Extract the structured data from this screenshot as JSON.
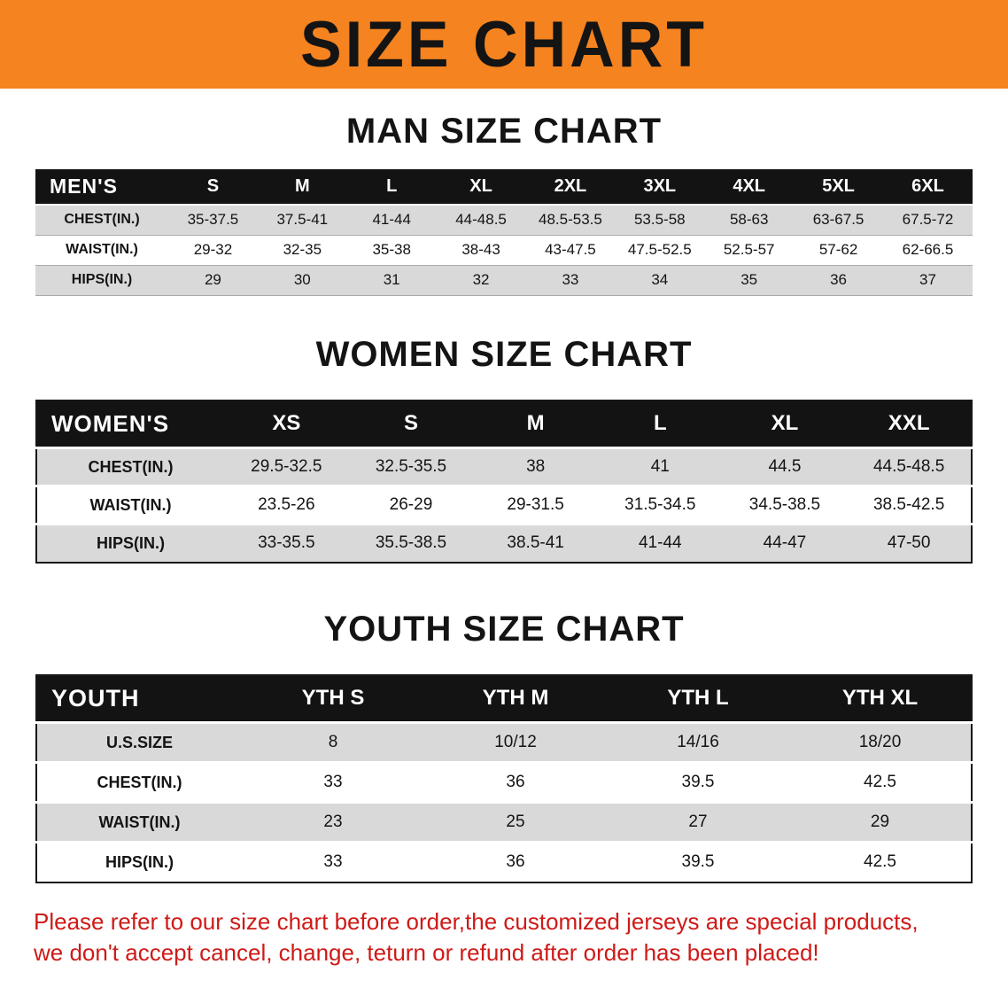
{
  "banner": {
    "title": "SIZE CHART",
    "background_color": "#F5831F",
    "text_color": "#141414"
  },
  "men": {
    "heading": "MAN SIZE CHART",
    "table": {
      "header": [
        "MEN'S",
        "S",
        "M",
        "L",
        "XL",
        "2XL",
        "3XL",
        "4XL",
        "5XL",
        "6XL"
      ],
      "rows": [
        [
          "CHEST(IN.)",
          "35-37.5",
          "37.5-41",
          "41-44",
          "44-48.5",
          "48.5-53.5",
          "53.5-58",
          "58-63",
          "63-67.5",
          "67.5-72"
        ],
        [
          "WAIST(IN.)",
          "29-32",
          "32-35",
          "35-38",
          "38-43",
          "43-47.5",
          "47.5-52.5",
          "52.5-57",
          "57-62",
          "62-66.5"
        ],
        [
          "HIPS(IN.)",
          "29",
          "30",
          "31",
          "32",
          "33",
          "34",
          "35",
          "36",
          "37"
        ]
      ]
    }
  },
  "women": {
    "heading": "WOMEN SIZE CHART",
    "table": {
      "header": [
        "WOMEN'S",
        "XS",
        "S",
        "M",
        "L",
        "XL",
        "XXL"
      ],
      "rows": [
        [
          "CHEST(IN.)",
          "29.5-32.5",
          "32.5-35.5",
          "38",
          "41",
          "44.5",
          "44.5-48.5"
        ],
        [
          "WAIST(IN.)",
          "23.5-26",
          "26-29",
          "29-31.5",
          "31.5-34.5",
          "34.5-38.5",
          "38.5-42.5"
        ],
        [
          "HIPS(IN.)",
          "33-35.5",
          "35.5-38.5",
          "38.5-41",
          "41-44",
          "44-47",
          "47-50"
        ]
      ]
    }
  },
  "youth": {
    "heading": "YOUTH SIZE CHART",
    "table": {
      "header": [
        "YOUTH",
        "YTH S",
        "YTH M",
        "YTH L",
        "YTH XL"
      ],
      "rows": [
        [
          "U.S.SIZE",
          "8",
          "10/12",
          "14/16",
          "18/20"
        ],
        [
          "CHEST(IN.)",
          "33",
          "36",
          "39.5",
          "42.5"
        ],
        [
          "WAIST(IN.)",
          "23",
          "25",
          "27",
          "29"
        ],
        [
          "HIPS(IN.)",
          "33",
          "36",
          "39.5",
          "42.5"
        ]
      ]
    }
  },
  "disclaimer": {
    "line1": "Please refer to our size chart before order,the customized jerseys are special products,",
    "line2": "we don't accept cancel, change, teturn or refund after order has been placed!",
    "text_color": "#CE1A17"
  }
}
